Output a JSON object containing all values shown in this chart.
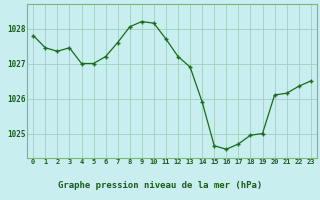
{
  "hours": [
    0,
    1,
    2,
    3,
    4,
    5,
    6,
    7,
    8,
    9,
    10,
    11,
    12,
    13,
    14,
    15,
    16,
    17,
    18,
    19,
    20,
    21,
    22,
    23
  ],
  "pressure": [
    1027.8,
    1027.45,
    1027.35,
    1027.45,
    1027.0,
    1027.0,
    1027.2,
    1027.6,
    1028.05,
    1028.2,
    1028.15,
    1027.7,
    1027.2,
    1026.9,
    1025.9,
    1024.65,
    1024.55,
    1024.7,
    1024.95,
    1025.0,
    1026.1,
    1026.15,
    1026.35,
    1026.5
  ],
  "line_color": "#1a6b1a",
  "marker_color": "#1a6b1a",
  "bg_color": "#c8eef0",
  "grid_color": "#a0d0c0",
  "xlabel": "Graphe pression niveau de la mer (hPa)",
  "yticks": [
    1025,
    1026,
    1027,
    1028
  ],
  "ylim": [
    1024.3,
    1028.7
  ],
  "xlim": [
    -0.5,
    23.5
  ],
  "label_color": "#1a5c1a",
  "bottom_bg": "#a8c8a0",
  "spine_color": "#7ab87a"
}
